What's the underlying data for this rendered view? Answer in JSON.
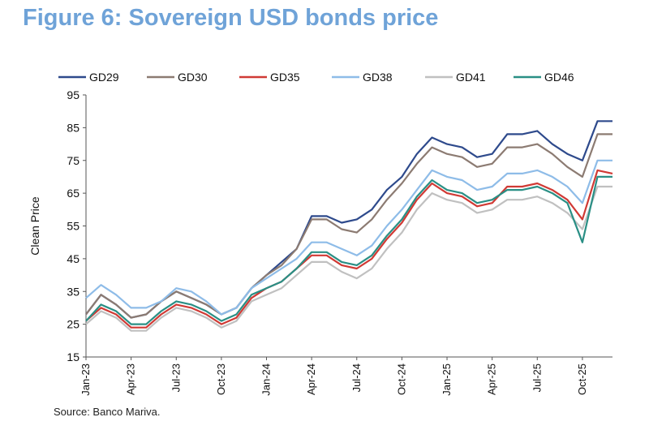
{
  "title": "Figure 6: Sovereign USD bonds price",
  "source": "Source: Banco Mariva.",
  "chart_data": {
    "type": "line",
    "title": "Figure 6: Sovereign USD bonds price",
    "xlabel": "",
    "ylabel": "Clean Price",
    "ylim": [
      15,
      95
    ],
    "yticks": [
      15,
      25,
      35,
      45,
      55,
      65,
      75,
      85,
      95
    ],
    "grid": false,
    "legend": "top",
    "x": [
      "Jan-23",
      "Feb-23",
      "Mar-23",
      "Apr-23",
      "May-23",
      "Jun-23",
      "Jul-23",
      "Aug-23",
      "Sep-23",
      "Oct-23",
      "Nov-23",
      "Dec-23",
      "Jan-24",
      "Feb-24",
      "Mar-24",
      "Apr-24",
      "May-24",
      "Jun-24",
      "Jul-24",
      "Aug-24",
      "Sep-24",
      "Oct-24",
      "Nov-24",
      "Dec-24",
      "Jan-25",
      "Feb-25",
      "Mar-25",
      "Apr-25",
      "May-25",
      "Jun-25",
      "Jul-25",
      "Aug-25",
      "Sep-25",
      "Oct-25",
      "Nov-25",
      "Dec-25"
    ],
    "xticklabels": [
      "Jan-23",
      "Apr-23",
      "Jul-23",
      "Oct-23",
      "Jan-24",
      "Apr-24",
      "Jul-24",
      "Oct-24",
      "Jan-25",
      "Apr-25",
      "Jul-25",
      "Oct-25"
    ],
    "series": [
      {
        "name": "GD29",
        "color": "#2E4A8C",
        "values": [
          28,
          34,
          31,
          27,
          28,
          32,
          35,
          33,
          31,
          28,
          30,
          36,
          40,
          44,
          48,
          58,
          58,
          56,
          57,
          60,
          66,
          70,
          77,
          82,
          80,
          79,
          76,
          77,
          83,
          83,
          84,
          80,
          77,
          75,
          87,
          87
        ]
      },
      {
        "name": "GD30",
        "color": "#8C7B72",
        "values": [
          28,
          34,
          31,
          27,
          28,
          32,
          35,
          33,
          31,
          28,
          30,
          36,
          40,
          43,
          48,
          57,
          57,
          54,
          53,
          57,
          63,
          68,
          74,
          79,
          77,
          76,
          73,
          74,
          79,
          79,
          80,
          77,
          73,
          70,
          83,
          83
        ]
      },
      {
        "name": "GD35",
        "color": "#D03A35",
        "values": [
          26,
          30,
          28,
          24,
          24,
          28,
          31,
          30,
          28,
          25,
          27,
          33,
          36,
          38,
          42,
          46,
          46,
          43,
          42,
          45,
          51,
          56,
          63,
          68,
          65,
          64,
          61,
          62,
          67,
          67,
          68,
          66,
          63,
          57,
          72,
          71
        ]
      },
      {
        "name": "GD38",
        "color": "#8EBCE8",
        "values": [
          33,
          37,
          34,
          30,
          30,
          32,
          36,
          35,
          32,
          28,
          30,
          36,
          39,
          42,
          45,
          50,
          50,
          48,
          46,
          49,
          55,
          60,
          66,
          72,
          70,
          69,
          66,
          67,
          71,
          71,
          72,
          70,
          67,
          62,
          75,
          75
        ]
      },
      {
        "name": "GD41",
        "color": "#C0C0C0",
        "values": [
          25,
          29,
          27,
          23,
          23,
          27,
          30,
          29,
          27,
          24,
          26,
          32,
          34,
          36,
          40,
          44,
          44,
          41,
          39,
          42,
          48,
          53,
          60,
          65,
          63,
          62,
          59,
          60,
          63,
          63,
          64,
          62,
          59,
          54,
          67,
          67
        ]
      },
      {
        "name": "GD46",
        "color": "#2A8F85",
        "values": [
          26,
          31,
          29,
          25,
          25,
          29,
          32,
          31,
          29,
          26,
          28,
          34,
          36,
          38,
          42,
          47,
          47,
          44,
          43,
          46,
          52,
          57,
          64,
          69,
          66,
          65,
          62,
          63,
          66,
          66,
          67,
          65,
          62,
          50,
          70,
          70
        ]
      }
    ]
  }
}
